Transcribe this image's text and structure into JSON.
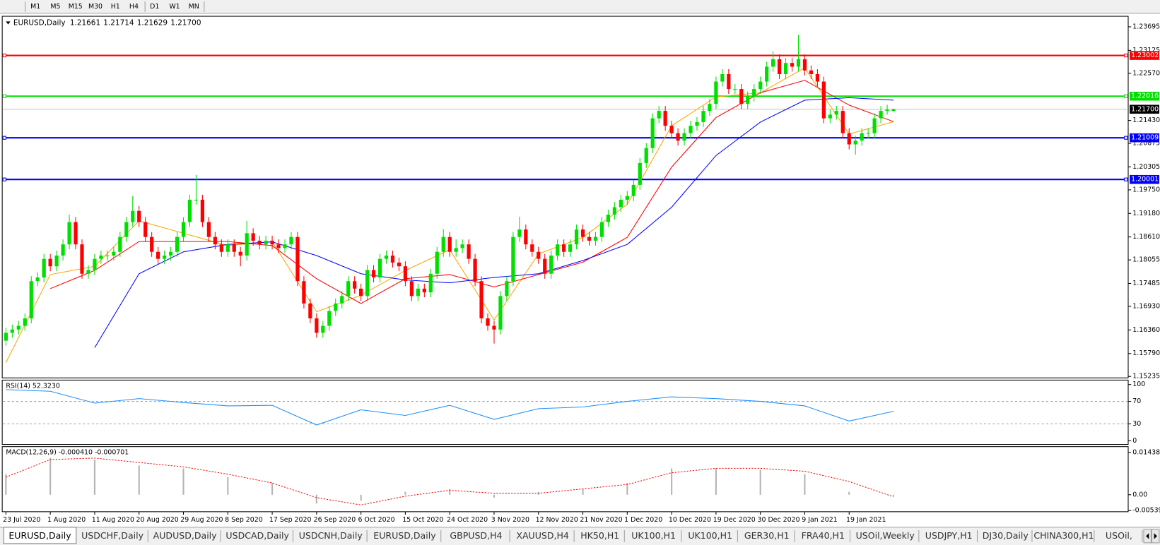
{
  "toolbar": {
    "timeframes": [
      "M1",
      "M5",
      "M15",
      "M30",
      "H1",
      "H4",
      "D1",
      "W1",
      "MN"
    ]
  },
  "chart_data": [
    {
      "type": "candlestick",
      "title": "EURUSD,Daily",
      "categories": [
        "23 Jul 2020",
        null,
        null,
        null,
        null,
        null,
        null,
        "1 Aug 2020",
        null,
        null,
        null,
        null,
        null,
        null,
        "11 Aug 2020",
        null,
        null,
        null,
        null,
        null,
        null,
        "20 Aug 2020",
        null,
        null,
        null,
        null,
        null,
        null,
        "29 Aug 2020",
        null,
        null,
        null,
        null,
        null,
        null,
        "8 Sep 2020",
        null,
        null,
        null,
        null,
        null,
        null,
        "17 Sep 2020",
        null,
        null,
        null,
        null,
        null,
        null,
        "26 Sep 2020",
        null,
        null,
        null,
        null,
        null,
        null,
        "6 Oct 2020",
        null,
        null,
        null,
        null,
        null,
        null,
        "15 Oct 2020",
        null,
        null,
        null,
        null,
        null,
        null,
        "24 Oct 2020",
        null,
        null,
        null,
        null,
        null,
        null,
        "3 Nov 2020",
        null,
        null,
        null,
        null,
        null,
        null,
        "12 Nov 2020",
        null,
        null,
        null,
        null,
        null,
        null,
        "21 Nov 2020",
        null,
        null,
        null,
        null,
        null,
        null,
        "1 Dec 2020",
        null,
        null,
        null,
        null,
        null,
        null,
        "10 Dec 2020",
        null,
        null,
        null,
        null,
        null,
        null,
        "19 Dec 2020",
        null,
        null,
        null,
        null,
        null,
        null,
        "30 Dec 2020",
        null,
        null,
        null,
        null,
        null,
        null,
        "9 Jan 2021",
        null,
        null,
        null,
        null,
        null,
        null,
        "19 Jan 2021",
        null,
        null,
        null,
        null,
        null,
        null,
        null
      ],
      "open": [
        1.161,
        1.1629,
        1.1637,
        1.1646,
        1.1664,
        1.1754,
        1.1763,
        1.1808,
        1.179,
        1.1816,
        1.1843,
        1.1897,
        1.1843,
        1.1772,
        1.1781,
        1.1808,
        1.1816,
        1.1816,
        1.1825,
        1.1861,
        1.1897,
        1.1924,
        1.1897,
        1.1861,
        1.1825,
        1.1808,
        1.1816,
        1.1825,
        1.1861,
        1.1897,
        1.1951,
        1.1951,
        1.1897,
        1.1861,
        1.1843,
        1.1825,
        1.1843,
        1.1825,
        1.1816,
        1.187,
        1.1852,
        1.1843,
        1.1852,
        1.1843,
        1.1834,
        1.1843,
        1.1861,
        1.1754,
        1.17,
        1.1664,
        1.1629,
        1.1646,
        1.1682,
        1.17,
        1.1718,
        1.1754,
        1.1736,
        1.1718,
        1.1781,
        1.1763,
        1.1808,
        1.1816,
        1.1799,
        1.179,
        1.1754,
        1.1718,
        1.1736,
        1.1727,
        1.1772,
        1.1825,
        1.1861,
        1.1825,
        1.1834,
        1.1843,
        1.1808,
        1.1754,
        1.1664,
        1.1646,
        1.1637,
        1.1718,
        1.1754,
        1.1861,
        1.1879,
        1.1843,
        1.1825,
        1.1808,
        1.1772,
        1.1816,
        1.1843,
        1.1825,
        1.1843,
        1.1879,
        1.1861,
        1.1852,
        1.1861,
        1.1897,
        1.1915,
        1.1933,
        1.1951,
        1.196,
        1.1987,
        1.204,
        1.2076,
        1.2148,
        1.2166,
        1.213,
        1.2112,
        1.2094,
        1.2112,
        1.213,
        1.2139,
        1.2166,
        1.2183,
        1.2237,
        1.2255,
        1.2219,
        1.2219,
        1.2183,
        1.2201,
        1.2219,
        1.2237,
        1.2273,
        1.2291,
        1.2255,
        1.2282,
        1.2273,
        1.2291,
        1.2264,
        1.2255,
        1.2237,
        1.2148,
        1.2157,
        1.2166,
        1.2112,
        1.2085,
        1.2094,
        1.2112,
        1.2112,
        1.2148,
        1.2166,
        1.21661
      ],
      "high": [
        1.1641,
        1.1649,
        1.1658,
        1.1676,
        1.1766,
        1.1775,
        1.182,
        1.182,
        1.1828,
        1.1855,
        1.1915,
        1.1909,
        1.1855,
        1.1793,
        1.182,
        1.1828,
        1.1828,
        1.1837,
        1.1873,
        1.1909,
        1.196,
        1.1936,
        1.1909,
        1.1873,
        1.1837,
        1.1828,
        1.1837,
        1.1873,
        1.1909,
        1.1963,
        1.2011,
        1.1963,
        1.1909,
        1.1873,
        1.1855,
        1.1855,
        1.1855,
        1.1837,
        1.19,
        1.1882,
        1.1864,
        1.1864,
        1.1864,
        1.1855,
        1.1855,
        1.1873,
        1.1873,
        1.1766,
        1.1712,
        1.1676,
        1.1658,
        1.1694,
        1.1712,
        1.173,
        1.1766,
        1.1766,
        1.1748,
        1.1793,
        1.1793,
        1.182,
        1.1828,
        1.1828,
        1.1811,
        1.1802,
        1.1766,
        1.1748,
        1.1748,
        1.1784,
        1.1837,
        1.188,
        1.1873,
        1.1855,
        1.1855,
        1.1855,
        1.182,
        1.1766,
        1.1676,
        1.1658,
        1.173,
        1.1766,
        1.1873,
        1.191,
        1.1891,
        1.1855,
        1.1837,
        1.182,
        1.1828,
        1.1855,
        1.1855,
        1.1855,
        1.1891,
        1.1891,
        1.1873,
        1.1873,
        1.1909,
        1.1927,
        1.1945,
        1.1963,
        1.1972,
        1.1999,
        1.2052,
        1.2088,
        1.216,
        1.2178,
        1.2178,
        1.2142,
        1.2124,
        1.2124,
        1.2142,
        1.2151,
        1.2178,
        1.2195,
        1.2249,
        1.2267,
        1.2267,
        1.2231,
        1.2231,
        1.2213,
        1.2231,
        1.2249,
        1.2285,
        1.231,
        1.2303,
        1.2294,
        1.2294,
        1.235,
        1.2303,
        1.2276,
        1.2267,
        1.2249,
        1.2169,
        1.2178,
        1.2178,
        1.2124,
        1.2106,
        1.2124,
        1.2124,
        1.216,
        1.2178,
        1.2181,
        1.21714
      ],
      "low": [
        1.1598,
        1.1617,
        1.1625,
        1.1634,
        1.1652,
        1.1742,
        1.1751,
        1.1778,
        1.1778,
        1.1804,
        1.1831,
        1.1831,
        1.176,
        1.176,
        1.1769,
        1.1796,
        1.1804,
        1.1804,
        1.1813,
        1.1849,
        1.1885,
        1.1885,
        1.1849,
        1.1813,
        1.1796,
        1.1796,
        1.1804,
        1.1813,
        1.1849,
        1.1885,
        1.1939,
        1.1885,
        1.1849,
        1.1831,
        1.1813,
        1.1813,
        1.1813,
        1.179,
        1.1804,
        1.184,
        1.1831,
        1.1831,
        1.1831,
        1.1822,
        1.1822,
        1.1831,
        1.1742,
        1.1688,
        1.1652,
        1.1617,
        1.1617,
        1.1634,
        1.167,
        1.1688,
        1.1706,
        1.1724,
        1.1706,
        1.1706,
        1.1751,
        1.1751,
        1.1796,
        1.1787,
        1.1778,
        1.1742,
        1.1706,
        1.1706,
        1.1715,
        1.1715,
        1.176,
        1.1813,
        1.1813,
        1.1813,
        1.1822,
        1.1796,
        1.1742,
        1.1652,
        1.1634,
        1.1603,
        1.1625,
        1.1706,
        1.1742,
        1.1849,
        1.1831,
        1.1813,
        1.1796,
        1.176,
        1.176,
        1.1804,
        1.1813,
        1.1813,
        1.1831,
        1.1849,
        1.184,
        1.184,
        1.1849,
        1.1885,
        1.1903,
        1.1921,
        1.1939,
        1.1948,
        1.1975,
        1.2028,
        1.2064,
        1.2136,
        1.2118,
        1.21,
        1.2082,
        1.2082,
        1.21,
        1.2118,
        1.2127,
        1.2154,
        1.2171,
        1.2225,
        1.2207,
        1.2207,
        1.2171,
        1.2171,
        1.2189,
        1.2207,
        1.2225,
        1.2261,
        1.2243,
        1.2243,
        1.2261,
        1.2261,
        1.2252,
        1.2243,
        1.2225,
        1.2136,
        1.2136,
        1.2145,
        1.21,
        1.2073,
        1.206,
        1.2082,
        1.21,
        1.21,
        1.2136,
        1.2157,
        1.21629
      ],
      "close": [
        1.1629,
        1.1637,
        1.1646,
        1.1664,
        1.1754,
        1.1763,
        1.1808,
        1.179,
        1.1816,
        1.1843,
        1.1897,
        1.1843,
        1.1772,
        1.1781,
        1.1808,
        1.1816,
        1.1816,
        1.1825,
        1.1861,
        1.1897,
        1.1924,
        1.1897,
        1.1861,
        1.1825,
        1.1808,
        1.1816,
        1.1825,
        1.1861,
        1.1897,
        1.1951,
        1.1951,
        1.1897,
        1.1861,
        1.1843,
        1.1825,
        1.1843,
        1.1825,
        1.1816,
        1.187,
        1.1852,
        1.1843,
        1.1852,
        1.1843,
        1.1834,
        1.1843,
        1.1861,
        1.1754,
        1.17,
        1.1664,
        1.1629,
        1.1646,
        1.1682,
        1.17,
        1.1718,
        1.1754,
        1.1736,
        1.1718,
        1.1781,
        1.1763,
        1.1808,
        1.1816,
        1.1799,
        1.179,
        1.1754,
        1.1718,
        1.1736,
        1.1727,
        1.1772,
        1.1825,
        1.1861,
        1.1825,
        1.1834,
        1.1843,
        1.1808,
        1.1754,
        1.1664,
        1.1646,
        1.1637,
        1.1718,
        1.1754,
        1.1861,
        1.1879,
        1.1843,
        1.1825,
        1.1808,
        1.1772,
        1.1816,
        1.1843,
        1.1825,
        1.1843,
        1.1879,
        1.1861,
        1.1852,
        1.1861,
        1.1897,
        1.1915,
        1.1933,
        1.1951,
        1.196,
        1.1987,
        1.204,
        1.2076,
        1.2148,
        1.2166,
        1.213,
        1.2112,
        1.2094,
        1.2112,
        1.213,
        1.2139,
        1.2166,
        1.2183,
        1.2237,
        1.2255,
        1.2219,
        1.2219,
        1.2183,
        1.2201,
        1.2219,
        1.2237,
        1.2273,
        1.2291,
        1.2255,
        1.2282,
        1.2273,
        1.2291,
        1.2264,
        1.2255,
        1.2237,
        1.2148,
        1.2157,
        1.2166,
        1.2112,
        1.2085,
        1.2094,
        1.2112,
        1.2112,
        1.2148,
        1.2166,
        1.2169,
        1.217
      ],
      "up_color": "#00e000",
      "down_color": "#ff0000",
      "series": [
        {
          "color": "#ffa500",
          "x": [
            0,
            7,
            14,
            21,
            28,
            35,
            42,
            49,
            56,
            63,
            70,
            77,
            84,
            91,
            98,
            105,
            112,
            119,
            126,
            133,
            140
          ],
          "values": [
            1.1557,
            1.177,
            1.179,
            1.19,
            1.187,
            1.184,
            1.185,
            1.168,
            1.172,
            1.178,
            1.183,
            1.166,
            1.182,
            1.186,
            1.194,
            1.213,
            1.22,
            1.221,
            1.227,
            1.211,
            1.214
          ]
        },
        {
          "color": "#ff0000",
          "x": [
            0,
            7,
            14,
            21,
            28,
            35,
            42,
            49,
            56,
            63,
            70,
            77,
            84,
            91,
            98,
            105,
            112,
            119,
            126,
            133,
            140
          ],
          "values": [
            null,
            1.1736,
            1.178,
            1.185,
            1.185,
            1.185,
            1.184,
            1.176,
            1.17,
            1.176,
            1.177,
            1.174,
            1.177,
            1.18,
            1.186,
            1.203,
            1.215,
            1.221,
            1.224,
            1.218,
            1.214
          ]
        },
        {
          "color": "#0000ff",
          "x": [
            0,
            7,
            14,
            21,
            28,
            35,
            42,
            49,
            56,
            63,
            70,
            77,
            84,
            91,
            98,
            105,
            112,
            119,
            126,
            133,
            140
          ],
          "values": [
            null,
            null,
            1.1593,
            1.1772,
            1.1825,
            1.1843,
            1.1849,
            1.1816,
            1.1772,
            1.1757,
            1.175,
            1.1763,
            1.1772,
            1.1804,
            1.1843,
            1.1933,
            1.2058,
            1.2139,
            1.2192,
            1.2198,
            1.2192
          ]
        }
      ],
      "levels": [
        {
          "value": 1.23002,
          "color": "#ff0000"
        },
        {
          "value": 1.22016,
          "color": "#00e000"
        },
        {
          "value": 1.21009,
          "color": "#0000ff"
        },
        {
          "value": 1.20001,
          "color": "#0000ff"
        }
      ],
      "current_price": {
        "value": 1.217,
        "label": "1.21700"
      },
      "ylim": [
        1.152,
        1.2395
      ],
      "yticks": [
        1.23695,
        1.23125,
        {
          "value": 1.2257,
          "label": "1.22570"
        },
        {
          "value": 1.2143,
          "label": "1.21430"
        },
        1.20875,
        1.20305,
        {
          "value": 1.1975,
          "label": "1.19750"
        },
        {
          "value": 1.1918,
          "label": "1.19180"
        },
        {
          "value": 1.1861,
          "label": "1.18610"
        },
        1.18055,
        1.17485,
        {
          "value": 1.1693,
          "label": "1.16930"
        },
        {
          "value": 1.1636,
          "label": "1.16360"
        },
        {
          "value": 1.1579,
          "label": "1.15790"
        },
        1.15235
      ]
    },
    {
      "type": "line",
      "title": "RSI(14) 52.3230",
      "x": [
        0,
        7,
        14,
        21,
        28,
        35,
        42,
        49,
        56,
        63,
        70,
        77,
        84,
        91,
        98,
        105,
        112,
        119,
        126,
        133,
        140
      ],
      "values": [
        91,
        88,
        67,
        75,
        68,
        62,
        63,
        28,
        55,
        45,
        63,
        38,
        57,
        60,
        70,
        78,
        75,
        70,
        62,
        35,
        52.323
      ],
      "color": "#1e90ff",
      "ylim": [
        -6.6,
        107.9
      ],
      "yticks": [
        100,
        70,
        30,
        0
      ],
      "dashed_levels": [
        70,
        30
      ]
    },
    {
      "type": "macd",
      "title": "MACD(12,26,9) -0.000410 -0.000701",
      "x": [
        0,
        7,
        14,
        21,
        28,
        35,
        42,
        49,
        56,
        63,
        70,
        77,
        84,
        91,
        98,
        105,
        112,
        119,
        126,
        133,
        140
      ],
      "histogram": [
        0.007,
        0.0125,
        0.012,
        0.01,
        0.009,
        0.006,
        0.004,
        -0.003,
        -0.002,
        0.001,
        0.002,
        -0.001,
        0.001,
        0.002,
        0.004,
        0.009,
        0.009,
        0.0085,
        0.007,
        0.001,
        -0.00041
      ],
      "signal": [
        0.006,
        0.012,
        0.0125,
        0.011,
        0.0095,
        0.007,
        0.004,
        -0.001,
        -0.0035,
        -0.0005,
        0.0015,
        0.0005,
        0.0005,
        0.002,
        0.0035,
        0.0075,
        0.009,
        0.009,
        0.008,
        0.0045,
        -0.000701
      ],
      "hist_color": "#b4b4b4",
      "signal_color": "#ff0000",
      "ylim": [
        -0.0058,
        0.0164
      ],
      "yticks": [
        0.014384,
        {
          "value": 0,
          "label": "0.00"
        },
        -0.005396
      ]
    }
  ],
  "tabs": [
    "EURUSD,Daily",
    "USDCHF,Daily",
    "AUDUSD,Daily",
    "USDCAD,Daily",
    "USDCNH,Daily",
    "EURUSD,Daily",
    "GBPUSD,H4",
    "XAUUSD,H4",
    "HK50,H1",
    "UK100,H1",
    "UK100,H1",
    "GER30,H1",
    "FRA40,H1",
    "USOil,Weekly",
    "USDJPY,H1",
    "DJ30,Daily",
    "CHINA300,H1",
    "USOil,"
  ]
}
